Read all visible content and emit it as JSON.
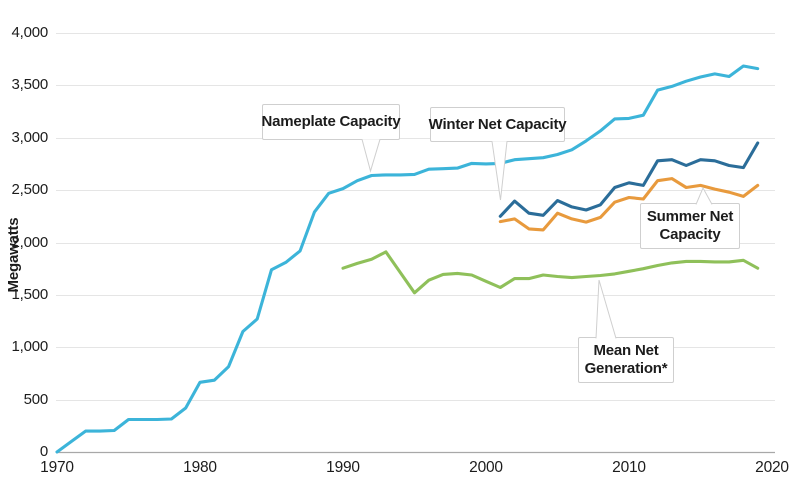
{
  "chart_data": {
    "type": "line",
    "title": "",
    "xlabel": "",
    "ylabel": "Megawatts",
    "xlim": [
      1970,
      2020
    ],
    "ylim": [
      0,
      4000
    ],
    "grid": "horizontal",
    "legend_position": "inline-callouts",
    "y_ticks": [
      0,
      500,
      1000,
      1500,
      2000,
      2500,
      3000,
      3500,
      4000
    ],
    "y_tick_labels": [
      "0",
      "500",
      "1,000",
      "1,500",
      "2,000",
      "2,500",
      "3,000",
      "3,500",
      "4,000"
    ],
    "x_ticks": [
      1970,
      1980,
      1990,
      2000,
      2010,
      2020
    ],
    "x_tick_labels": [
      "1970",
      "1980",
      "1990",
      "2000",
      "2010",
      "2020"
    ],
    "series": [
      {
        "name": "Nameplate Capacity",
        "color": "#3cb4d9",
        "start_year": 1970,
        "values": [
          0,
          100,
          200,
          200,
          205,
          310,
          310,
          310,
          315,
          420,
          665,
          685,
          815,
          1150,
          1270,
          1740,
          1810,
          1920,
          2290,
          2470,
          2515,
          2590,
          2640,
          2645,
          2645,
          2650,
          2700,
          2705,
          2710,
          2755,
          2750,
          2755,
          2790,
          2800,
          2810,
          2840,
          2885,
          2970,
          3065,
          3180,
          3185,
          3215,
          3455,
          3490,
          3540,
          3580,
          3610,
          3585,
          3685,
          3660
        ]
      },
      {
        "name": "Winter Net Capacity",
        "color": "#2b6d99",
        "start_year": 2001,
        "values": [
          2250,
          2395,
          2280,
          2260,
          2400,
          2340,
          2310,
          2360,
          2525,
          2570,
          2545,
          2780,
          2790,
          2735,
          2790,
          2780,
          2735,
          2715,
          2950
        ]
      },
      {
        "name": "Summer Net Capacity",
        "color": "#e89a3d",
        "start_year": 2001,
        "values": [
          2200,
          2225,
          2130,
          2120,
          2280,
          2225,
          2195,
          2240,
          2385,
          2430,
          2415,
          2590,
          2610,
          2525,
          2545,
          2510,
          2480,
          2440,
          2545
        ]
      },
      {
        "name": "Mean Net Generation*",
        "color": "#8fc05a",
        "start_year": 1990,
        "values": [
          1755,
          1800,
          1840,
          1910,
          1715,
          1520,
          1640,
          1695,
          1705,
          1690,
          1630,
          1570,
          1655,
          1655,
          1690,
          1675,
          1665,
          1675,
          1685,
          1700,
          1725,
          1750,
          1780,
          1805,
          1820,
          1820,
          1815,
          1815,
          1830,
          1755
        ]
      }
    ],
    "annotations": [
      {
        "label": "Nameplate Capacity",
        "points_to_year": 1992
      },
      {
        "label": "Winter Net Capacity",
        "points_to_year": 2001
      },
      {
        "label": "Summer Net Capacity",
        "points_to_year": 2015
      },
      {
        "label": "Mean Net Generation*",
        "points_to_year": 2008
      }
    ]
  },
  "callouts": {
    "nameplate": {
      "label": "Nameplate Capacity"
    },
    "winter": {
      "label": "Winter Net Capacity"
    },
    "summer": {
      "label": "Summer Net Capacity"
    },
    "mean": {
      "label": "Mean Net Generation*"
    }
  },
  "colors": {
    "grid": "#e5e5e5",
    "axis": "#a8a8a8",
    "text": "#1c1c1c",
    "callout_border": "#cfcfcf"
  }
}
